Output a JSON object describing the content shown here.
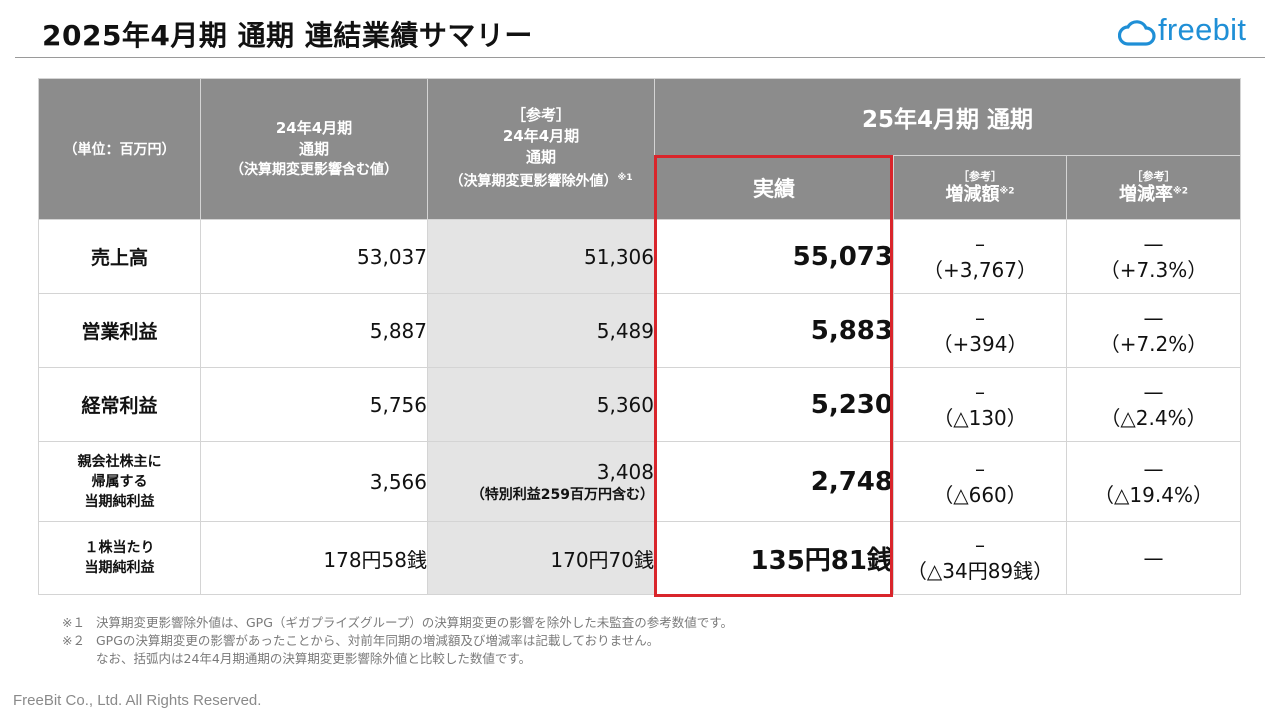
{
  "title": "2025年4月期 通期 連結業績サマリー",
  "logo": {
    "text": "freebit",
    "color": "#1f8fd6"
  },
  "colors": {
    "header_bg": "#8c8c8c",
    "ref_col_bg": "#e4e4e4",
    "highlight": "#d9252b"
  },
  "table": {
    "header": {
      "unit": "（単位：百万円）",
      "col_prev": [
        "24年4月期",
        "通期",
        "（決算期変更影響含む値）"
      ],
      "col_ref": [
        "［参考］",
        "24年4月期",
        "通期",
        "（決算期変更影響除外値）"
      ],
      "col_ref_sup": "※1",
      "group": "25年4月期 通期",
      "actual": "実績",
      "diff_ref": "［参考］",
      "diff": "増減額",
      "diff_sup": "※2",
      "rate_ref": "［参考］",
      "rate": "増減率",
      "rate_sup": "※2"
    },
    "rows": [
      {
        "label": "売上高",
        "prev": "53,037",
        "ref": "51,306",
        "actual": "55,073",
        "diff_dash": "–",
        "diff": "（+3,767）",
        "rate_dash": "—",
        "rate": "（+7.3%）"
      },
      {
        "label": "営業利益",
        "prev": "5,887",
        "ref": "5,489",
        "actual": "5,883",
        "diff_dash": "–",
        "diff": "（+394）",
        "rate_dash": "—",
        "rate": "（+7.2%）"
      },
      {
        "label": "経常利益",
        "prev": "5,756",
        "ref": "5,360",
        "actual": "5,230",
        "diff_dash": "–",
        "diff": "（△130）",
        "rate_dash": "—",
        "rate": "（△2.4%）"
      },
      {
        "label_lines": [
          "親会社株主に",
          "帰属する",
          "当期純利益"
        ],
        "prev": "3,566",
        "ref": "3,408",
        "ref_note": "（特別利益259百万円含む）",
        "actual": "2,748",
        "diff_dash": "–",
        "diff": "（△660）",
        "rate_dash": "—",
        "rate": "（△19.4%）"
      },
      {
        "label_lines": [
          "１株当たり",
          "当期純利益"
        ],
        "prev": "178円58銭",
        "ref": "170円70銭",
        "actual": "135円81銭",
        "diff_dash": "–",
        "diff": "（△34円89銭）",
        "rate": "—"
      }
    ]
  },
  "footnotes": [
    {
      "mark": "※１",
      "text": "決算期変更影響除外値は、GPG（ギガプライズグループ）の決算期変更の影響を除外した未監査の参考数値です。"
    },
    {
      "mark": "※２",
      "text": "GPGの決算期変更の影響があったことから、対前年同期の増減額及び増減率は記載しておりません。"
    },
    {
      "mark": "",
      "text": "なお、括弧内は24年4月期通期の決算期変更影響除外値と比較した数値です。"
    }
  ],
  "copyright": "FreeBit Co., Ltd. All Rights Reserved."
}
